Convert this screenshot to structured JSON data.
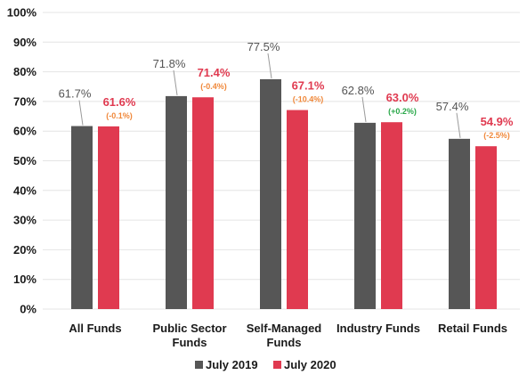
{
  "chart_data": {
    "type": "bar",
    "categories": [
      [
        "All Funds"
      ],
      [
        "Public Sector",
        "Funds"
      ],
      [
        "Self-Managed",
        "Funds"
      ],
      [
        "Industry Funds"
      ],
      [
        "Retail Funds"
      ]
    ],
    "series": [
      {
        "name": "July 2019",
        "color": "#565656",
        "values": [
          61.7,
          71.8,
          77.5,
          62.8,
          57.4
        ],
        "labels": [
          "61.7%",
          "71.8%",
          "77.5%",
          "62.8%",
          "57.4%"
        ]
      },
      {
        "name": "July 2020",
        "color": "#e03a50",
        "values": [
          61.6,
          71.4,
          67.1,
          63.0,
          54.9
        ],
        "labels": [
          "61.6%",
          "71.4%",
          "67.1%",
          "63.0%",
          "54.9%"
        ],
        "changes": [
          "(-0.1%)",
          "(-0.4%)",
          "(-10.4%)",
          "(+0.2%)",
          "(-2.5%)"
        ],
        "change_colors": [
          "#f0883a",
          "#f0883a",
          "#f0883a",
          "#2aa84a",
          "#f0883a"
        ]
      }
    ],
    "yticks": [
      "0%",
      "10%",
      "20%",
      "30%",
      "40%",
      "50%",
      "60%",
      "70%",
      "80%",
      "90%",
      "100%"
    ],
    "ylim": [
      0,
      100
    ],
    "grid": true,
    "legend": "bottom-center",
    "title": "",
    "xlabel": "",
    "ylabel": ""
  }
}
